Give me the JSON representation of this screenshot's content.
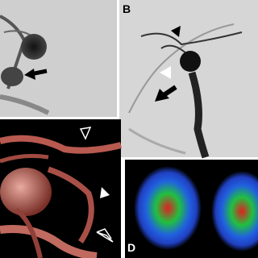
{
  "panels": [
    {
      "label": "B"
    },
    {
      "label": "D"
    }
  ]
}
